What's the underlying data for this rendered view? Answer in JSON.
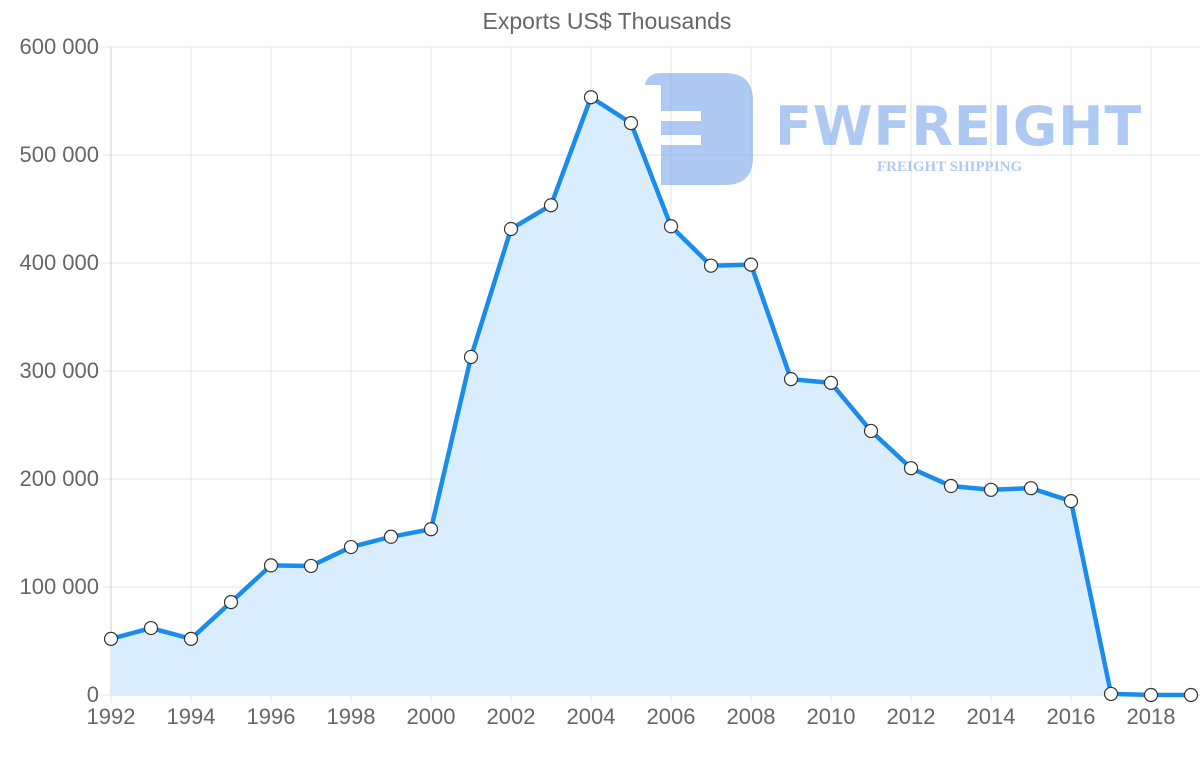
{
  "chart_data": {
    "type": "line",
    "title": "Exports US$ Thousands",
    "xlabel": "",
    "ylabel": "",
    "x": [
      1992,
      1993,
      1994,
      1995,
      1996,
      1997,
      1998,
      1999,
      2000,
      2001,
      2002,
      2003,
      2004,
      2005,
      2006,
      2007,
      2008,
      2009,
      2010,
      2011,
      2012,
      2013,
      2014,
      2015,
      2016,
      2017,
      2018,
      2019
    ],
    "series": [
      {
        "name": "Exports US$ Thousands",
        "values": [
          52000,
          62000,
          52000,
          86000,
          120000,
          119500,
          137000,
          146500,
          153500,
          313000,
          431500,
          453500,
          553500,
          529500,
          434000,
          397500,
          398500,
          292500,
          289000,
          244500,
          210000,
          193500,
          190000,
          191500,
          179500,
          1000,
          0,
          0
        ],
        "color": "#1a8cec",
        "fill": "#d8ecfc"
      }
    ],
    "ylim": [
      0,
      600000
    ],
    "yticks": [
      0,
      100000,
      200000,
      300000,
      400000,
      500000,
      600000
    ],
    "ytick_labels": [
      "0",
      "100 000",
      "200 000",
      "300 000",
      "400 000",
      "500 000",
      "600 000"
    ],
    "xtick_labels": [
      "1992",
      "1994",
      "1996",
      "1998",
      "2000",
      "2002",
      "2004",
      "2006",
      "2008",
      "2010",
      "2012",
      "2014",
      "2016",
      "2018"
    ],
    "grid": true,
    "legend": "none",
    "filled_area": true,
    "watermark": {
      "brand": "FWFREIGHT",
      "tagline": "FREIGHT SHIPPING"
    }
  }
}
